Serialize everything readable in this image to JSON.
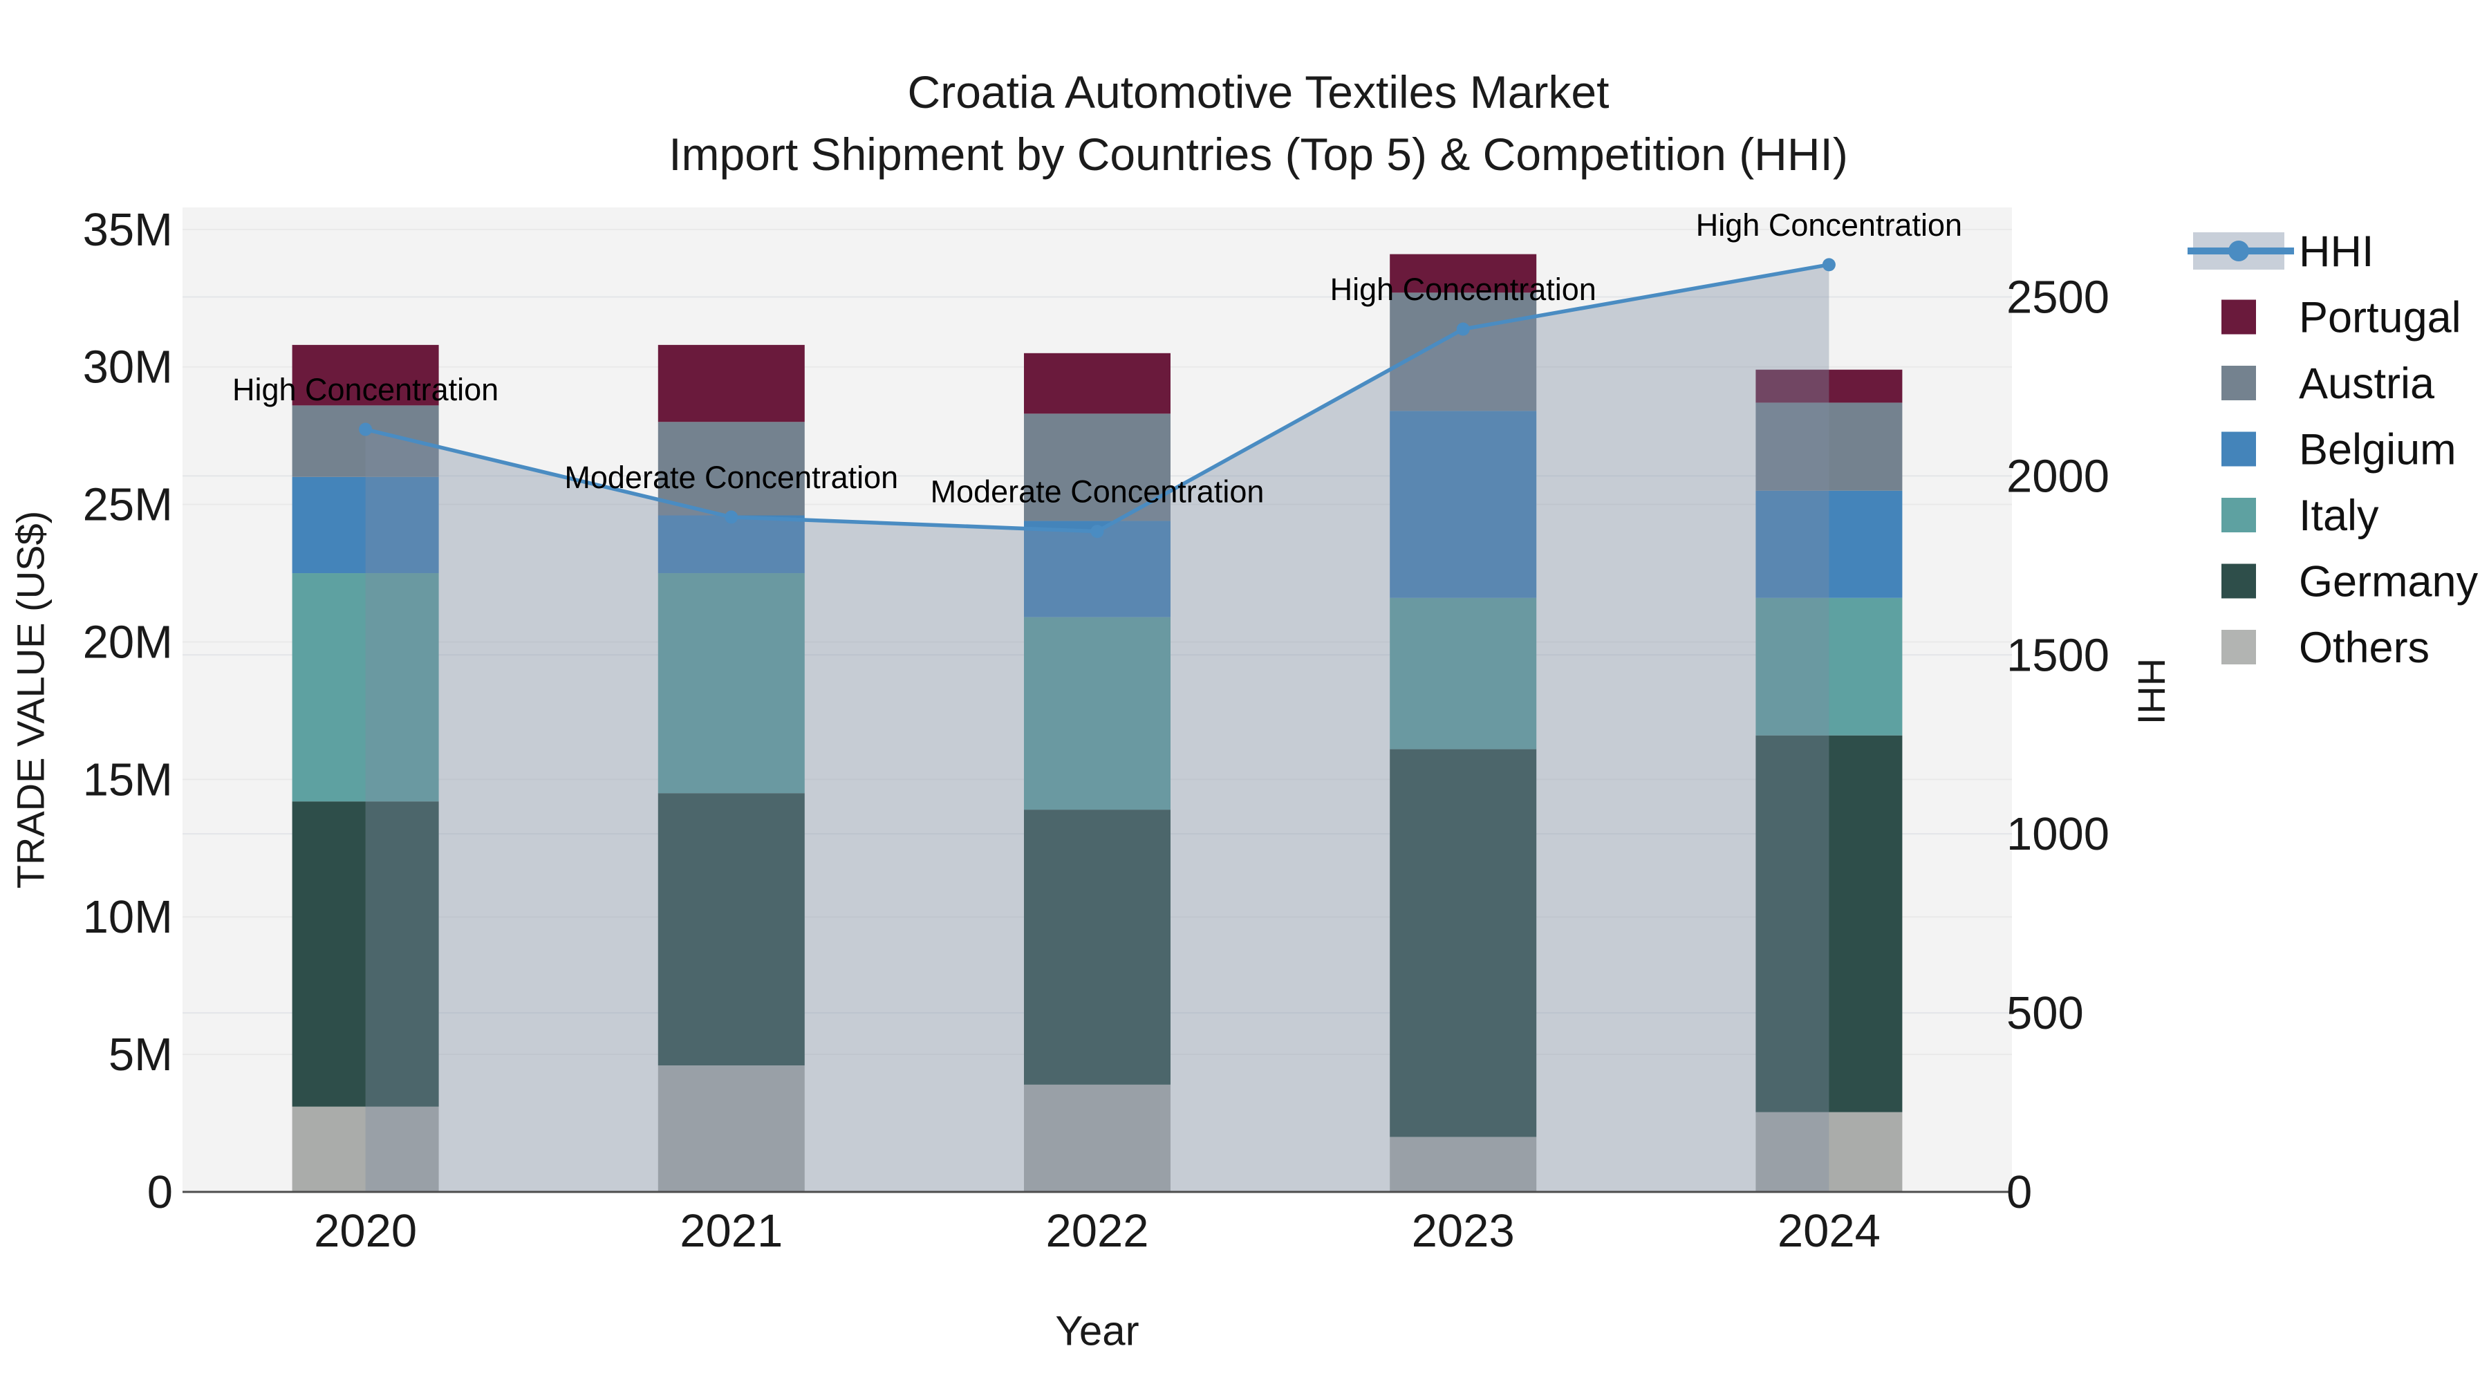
{
  "title": {
    "line1": "Croatia Automotive Textiles Market",
    "line2": "Import Shipment by Countries (Top 5) & Competition (HHI)"
  },
  "colors": {
    "background": "#ffffff",
    "plot_background": "#f3f3f3",
    "grid_left": "#e9e9e9",
    "grid_right": "#e3e5e8",
    "axis_line": "#4d4d4d",
    "hhi_line": "#4a8cc2",
    "hhi_area": "rgba(127,141,163,0.38)",
    "legend_line_band": "#c8cfd9",
    "text": "#1a1a1a"
  },
  "chart_data": {
    "type": "bar+line",
    "stacked": true,
    "categories": [
      "2020",
      "2021",
      "2022",
      "2023",
      "2024"
    ],
    "unit": "US$ millions (left axis), HHI index (right axis)",
    "series": [
      {
        "name": "Others",
        "color": "#aaacaa",
        "values_musd": [
          3.1,
          4.6,
          3.9,
          2.0,
          2.9
        ]
      },
      {
        "name": "Germany",
        "color": "#2e4e4a",
        "values_musd": [
          11.1,
          9.9,
          10.0,
          14.1,
          13.7
        ]
      },
      {
        "name": "Italy",
        "color": "#5ea1a1",
        "values_musd": [
          8.3,
          8.0,
          7.0,
          5.5,
          5.0
        ]
      },
      {
        "name": "Belgium",
        "color": "#4484ba",
        "values_musd": [
          3.5,
          2.1,
          3.5,
          6.8,
          3.9
        ]
      },
      {
        "name": "Austria",
        "color": "#74828f",
        "values_musd": [
          2.6,
          3.4,
          3.9,
          4.3,
          3.2
        ]
      },
      {
        "name": "Portugal",
        "color": "#6a1a3c",
        "values_musd": [
          2.2,
          2.8,
          2.2,
          1.4,
          1.2
        ]
      }
    ],
    "line_series": {
      "name": "HHI",
      "color": "#4a8cc2",
      "axis": "right",
      "area": true,
      "values": [
        2130,
        1885,
        1845,
        2410,
        2590
      ]
    },
    "annotations": [
      "High Concentration",
      "Moderate Concentration",
      "Moderate Concentration",
      "High Concentration",
      "High Concentration"
    ],
    "x_axis": {
      "label": "Year",
      "ticks": [
        "2020",
        "2021",
        "2022",
        "2023",
        "2024"
      ]
    },
    "y_left": {
      "label": "TRADE VALUE (US$)",
      "ticks": [
        "0",
        "5M",
        "10M",
        "15M",
        "20M",
        "25M",
        "30M",
        "35M"
      ],
      "tick_values_musd": [
        0,
        5,
        10,
        15,
        20,
        25,
        30,
        35
      ],
      "max_musd": 35.8
    },
    "y_right": {
      "label": "HHI",
      "ticks": [
        "0",
        "500",
        "1000",
        "1500",
        "2000",
        "2500"
      ],
      "tick_values": [
        0,
        500,
        1000,
        1500,
        2000,
        2500
      ],
      "max": 2750
    },
    "legend": {
      "entries": [
        {
          "label": "HHI",
          "type": "line",
          "color": "#4a8cc2"
        },
        {
          "label": "Portugal",
          "type": "swatch",
          "color": "#6a1a3c"
        },
        {
          "label": "Austria",
          "type": "swatch",
          "color": "#74828f"
        },
        {
          "label": "Belgium",
          "type": "swatch",
          "color": "#4484ba"
        },
        {
          "label": "Italy",
          "type": "swatch",
          "color": "#5ea1a1"
        },
        {
          "label": "Germany",
          "type": "swatch",
          "color": "#2e4e4a"
        },
        {
          "label": "Others",
          "type": "swatch",
          "color": "#b2b4b2"
        }
      ]
    }
  }
}
